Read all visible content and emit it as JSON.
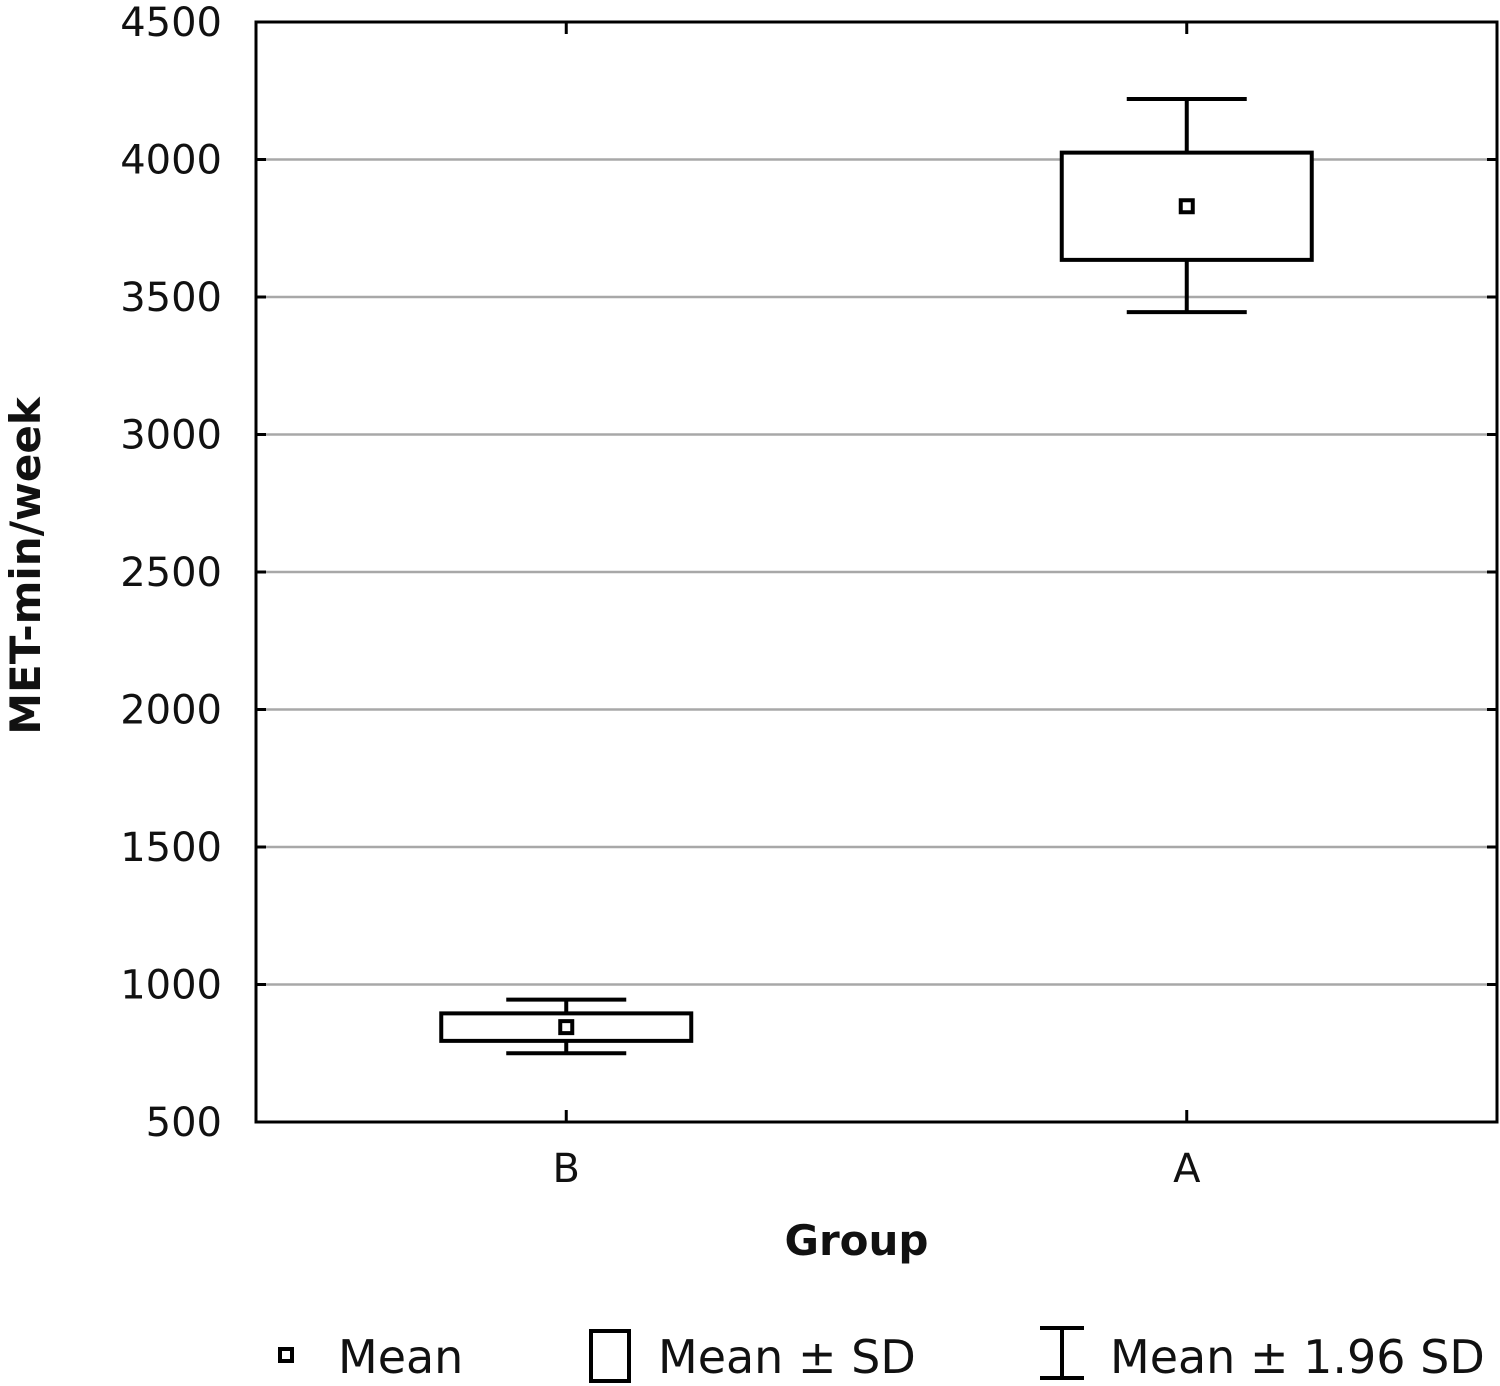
{
  "chart_data": {
    "type": "boxplot",
    "xlabel": "Group",
    "ylabel": "MET-min/week",
    "ylim": [
      500,
      4500
    ],
    "yticks": [
      500,
      1000,
      1500,
      2000,
      2500,
      3000,
      3500,
      4000,
      4500
    ],
    "grid": "horizontal",
    "legend_position": "bottom",
    "categories": [
      "B",
      "A"
    ],
    "groups": [
      {
        "name": "B",
        "mean": 845,
        "mean_minus_sd": 795,
        "mean_plus_sd": 895,
        "mean_minus_1_96_sd": 750,
        "mean_plus_1_96_sd": 945
      },
      {
        "name": "A",
        "mean": 3830,
        "mean_minus_sd": 3635,
        "mean_plus_sd": 4025,
        "mean_minus_1_96_sd": 3445,
        "mean_plus_1_96_sd": 4220
      }
    ],
    "legend": [
      {
        "key": "mean",
        "label": "Mean"
      },
      {
        "key": "sd",
        "label": "Mean ± SD"
      },
      {
        "key": "ci",
        "label": "Mean ± 1.96 SD"
      }
    ]
  }
}
